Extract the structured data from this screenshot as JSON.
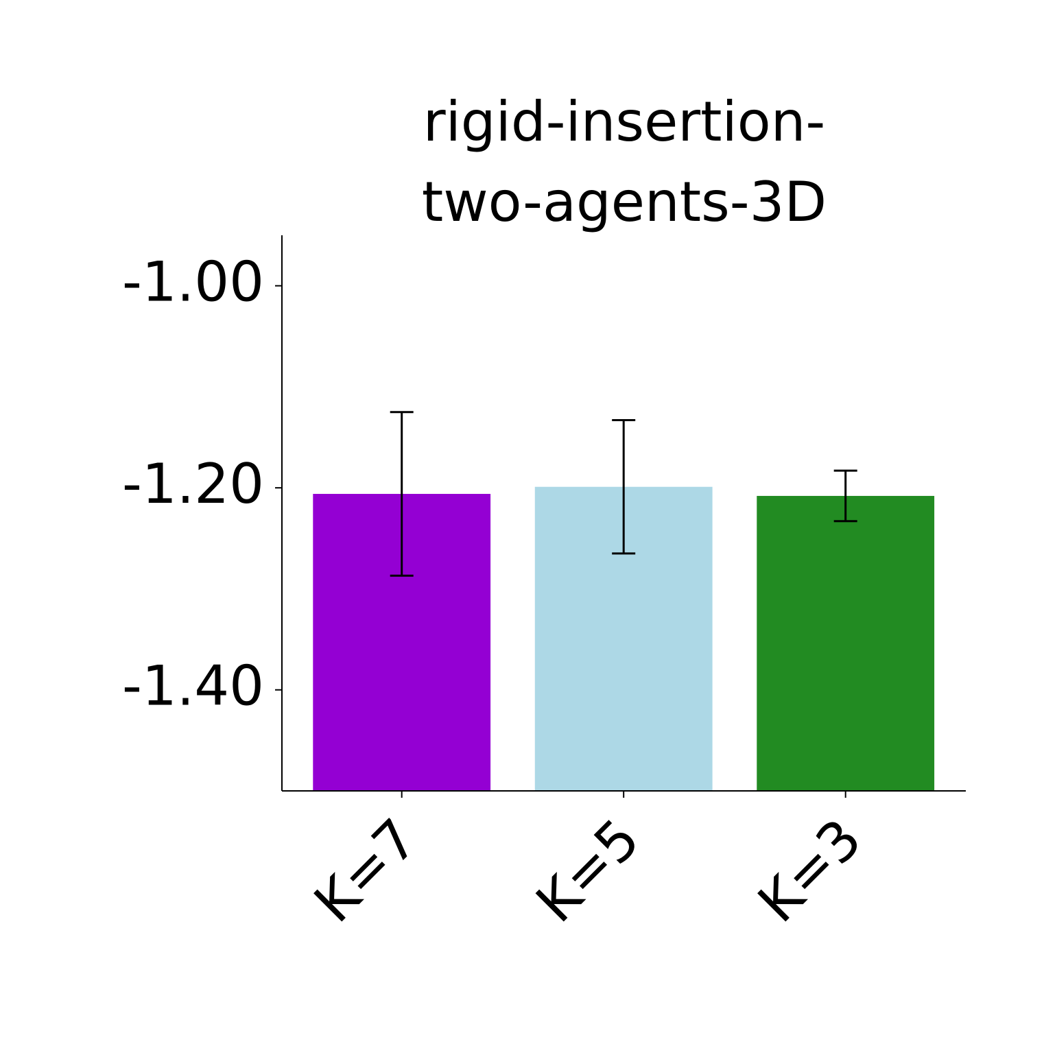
{
  "chart_data": {
    "type": "bar",
    "title": [
      "rigid-insertion-",
      "two-agents-3D"
    ],
    "categories": [
      "K=7",
      "K=5",
      "K=3"
    ],
    "values": [
      -1.206,
      -1.199,
      -1.208
    ],
    "errors": [
      0.081,
      0.066,
      0.025
    ],
    "colors": [
      "#9400d3",
      "#add8e6",
      "#228b22"
    ],
    "ylim": [
      -1.5,
      -0.95
    ],
    "yticks": [
      {
        "value": -1.4,
        "label": "-1.40"
      },
      {
        "value": -1.2,
        "label": "-1.20"
      },
      {
        "value": -1.0,
        "label": "-1.00"
      }
    ]
  }
}
